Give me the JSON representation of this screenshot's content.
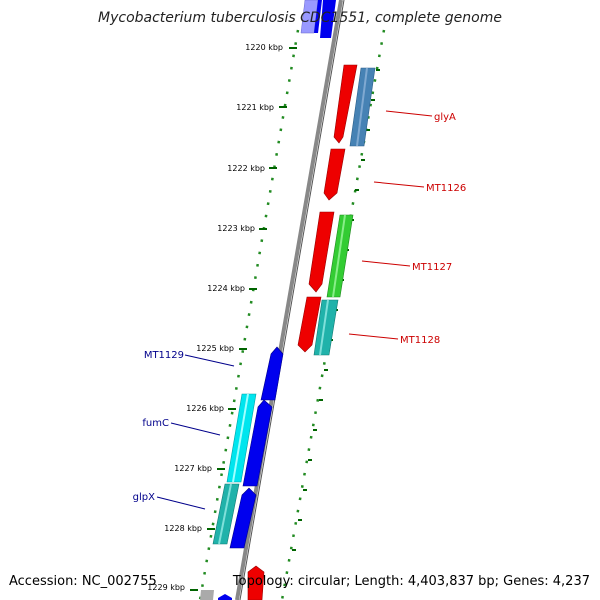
{
  "title": "Mycobacterium tuberculosis CDC1551, complete genome",
  "footer": {
    "accession": "Accession: NC_002755",
    "summary": "Topology: circular; Length: 4,403,837 bp; Genes: 4,237"
  },
  "colors": {
    "forward_label": "#cc0000",
    "reverse_label": "#00008b",
    "backbone": "#808080",
    "tick": "#006400",
    "dots": "#228b22"
  },
  "ticks": [
    "1220 kbp",
    "1221 kbp",
    "1222 kbp",
    "1223 kbp",
    "1224 kbp",
    "1225 kbp",
    "1226 kbp",
    "1227 kbp",
    "1228 kbp",
    "1229 kbp"
  ],
  "genes": [
    {
      "label": "glyA",
      "strand": "forward"
    },
    {
      "label": "MT1126",
      "strand": "forward"
    },
    {
      "label": "MT1127",
      "strand": "forward"
    },
    {
      "label": "MT1128",
      "strand": "forward"
    },
    {
      "label": "MT1129",
      "strand": "reverse"
    },
    {
      "label": "fumC",
      "strand": "reverse"
    },
    {
      "label": "glpX",
      "strand": "reverse"
    }
  ]
}
